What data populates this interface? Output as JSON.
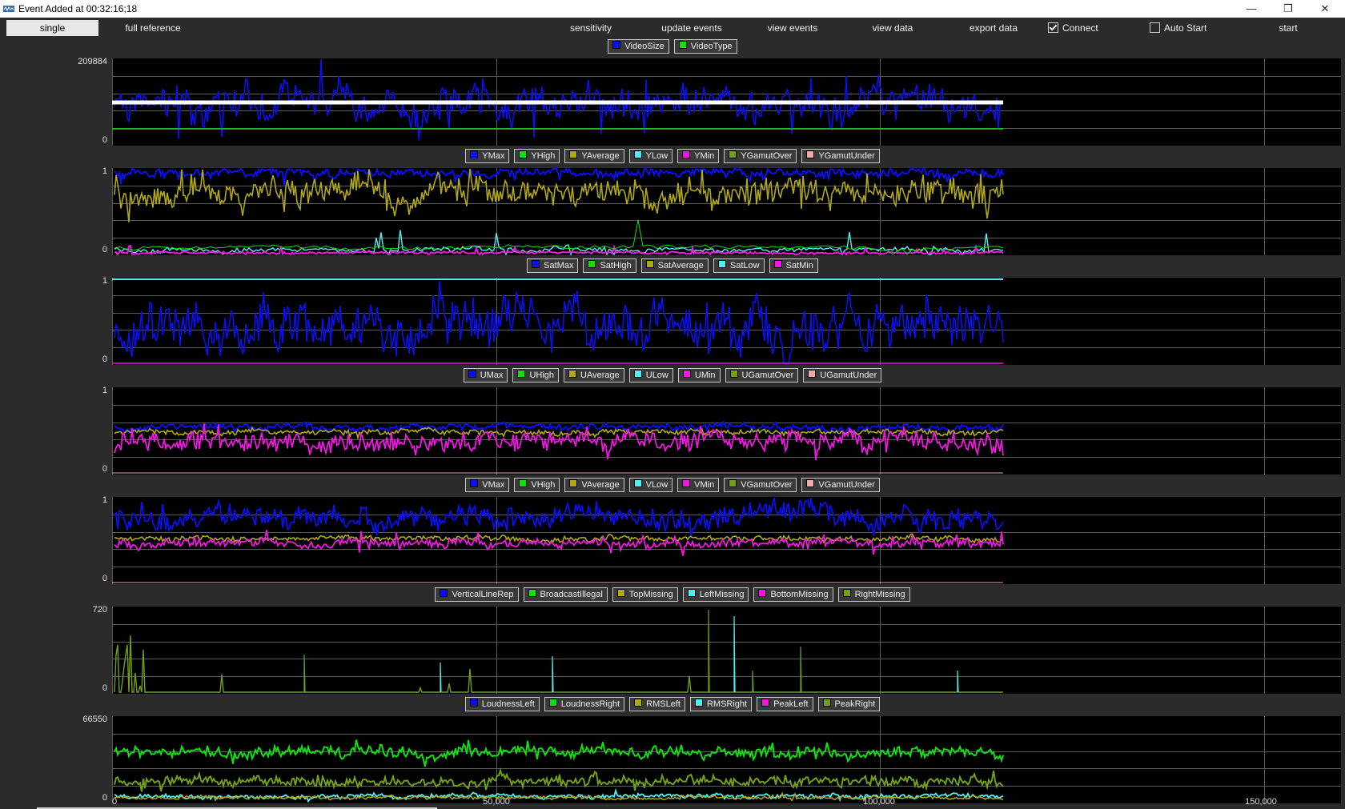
{
  "window": {
    "title": "Event Added at 00:32:16;18",
    "icon": "waveform-app-icon",
    "controls": [
      "minimize",
      "restore",
      "close"
    ]
  },
  "toolbar": {
    "single": "single",
    "full_reference": "full reference",
    "sensitivity": "sensitivity",
    "update_events": "update events",
    "view_events": "view events",
    "view_data": "view data",
    "export_data": "export data",
    "connect": "Connect",
    "connect_checked": true,
    "auto_start": "Auto Start",
    "auto_start_checked": false,
    "start": "start"
  },
  "colors": {
    "blue": "#0a10f0",
    "green": "#10e010",
    "olive": "#b0a818",
    "cyan": "#50f0f0",
    "magenta": "#f018e0",
    "darkgreen": "#70a018",
    "pink": "#f0a8a8",
    "panel_bg": "#000000",
    "grid": "#5a5a5a"
  },
  "chart_data": [
    {
      "type": "line",
      "legend": [
        {
          "name": "VideoSize",
          "color": "#0a10f0"
        },
        {
          "name": "VideoType",
          "color": "#10e010"
        }
      ],
      "y_ticks": [
        "209884",
        "0"
      ],
      "ylim": [
        0,
        209884
      ],
      "xlim": [
        0,
        160000
      ],
      "x_ticks": [
        "0",
        "50,000",
        "100,000",
        "150,000"
      ],
      "data_extent_x": 116000
    },
    {
      "type": "line",
      "legend": [
        {
          "name": "YMax",
          "color": "#0a10f0"
        },
        {
          "name": "YHigh",
          "color": "#10e010"
        },
        {
          "name": "YAverage",
          "color": "#b0a818"
        },
        {
          "name": "YLow",
          "color": "#50f0f0"
        },
        {
          "name": "YMin",
          "color": "#f018e0"
        },
        {
          "name": "YGamutOver",
          "color": "#70a018"
        },
        {
          "name": "YGamutUnder",
          "color": "#f0a8a8"
        }
      ],
      "y_ticks": [
        "1",
        "0"
      ],
      "ylim": [
        0,
        1
      ]
    },
    {
      "type": "line",
      "legend": [
        {
          "name": "SatMax",
          "color": "#0a10f0"
        },
        {
          "name": "SatHigh",
          "color": "#10e010"
        },
        {
          "name": "SatAverage",
          "color": "#b0a818"
        },
        {
          "name": "SatLow",
          "color": "#50f0f0"
        },
        {
          "name": "SatMin",
          "color": "#f018e0"
        }
      ],
      "y_ticks": [
        "1",
        "0"
      ],
      "ylim": [
        0,
        1
      ]
    },
    {
      "type": "line",
      "legend": [
        {
          "name": "UMax",
          "color": "#0a10f0"
        },
        {
          "name": "UHigh",
          "color": "#10e010"
        },
        {
          "name": "UAverage",
          "color": "#b0a818"
        },
        {
          "name": "ULow",
          "color": "#50f0f0"
        },
        {
          "name": "UMin",
          "color": "#f018e0"
        },
        {
          "name": "UGamutOver",
          "color": "#70a018"
        },
        {
          "name": "UGamutUnder",
          "color": "#f0a8a8"
        }
      ],
      "y_ticks": [
        "1",
        "0"
      ],
      "ylim": [
        0,
        1
      ]
    },
    {
      "type": "line",
      "legend": [
        {
          "name": "VMax",
          "color": "#0a10f0"
        },
        {
          "name": "VHigh",
          "color": "#10e010"
        },
        {
          "name": "VAverage",
          "color": "#b0a818"
        },
        {
          "name": "VLow",
          "color": "#50f0f0"
        },
        {
          "name": "VMin",
          "color": "#f018e0"
        },
        {
          "name": "VGamutOver",
          "color": "#70a018"
        },
        {
          "name": "VGamutUnder",
          "color": "#f0a8a8"
        }
      ],
      "y_ticks": [
        "1",
        "0"
      ],
      "ylim": [
        0,
        1
      ]
    },
    {
      "type": "line",
      "legend": [
        {
          "name": "VerticalLineRep",
          "color": "#0a10f0"
        },
        {
          "name": "BroadcastIllegal",
          "color": "#10e010"
        },
        {
          "name": "TopMissing",
          "color": "#b0a818"
        },
        {
          "name": "LeftMissing",
          "color": "#50f0f0"
        },
        {
          "name": "BottomMissing",
          "color": "#f018e0"
        },
        {
          "name": "RightMissing",
          "color": "#70a018"
        }
      ],
      "y_ticks": [
        "720",
        "0"
      ],
      "ylim": [
        0,
        720
      ]
    },
    {
      "type": "line",
      "legend": [
        {
          "name": "LoudnessLeft",
          "color": "#0a10f0"
        },
        {
          "name": "LoudnessRight",
          "color": "#10e010"
        },
        {
          "name": "RMSLeft",
          "color": "#b0a818"
        },
        {
          "name": "RMSRight",
          "color": "#50f0f0"
        },
        {
          "name": "PeakLeft",
          "color": "#f018e0"
        },
        {
          "name": "PeakRight",
          "color": "#70a018"
        }
      ],
      "y_ticks": [
        "66550",
        "0"
      ],
      "ylim": [
        0,
        66550
      ]
    }
  ],
  "x_axis": {
    "ticks": [
      "0",
      "50,000",
      "100,000",
      "150,000"
    ]
  }
}
